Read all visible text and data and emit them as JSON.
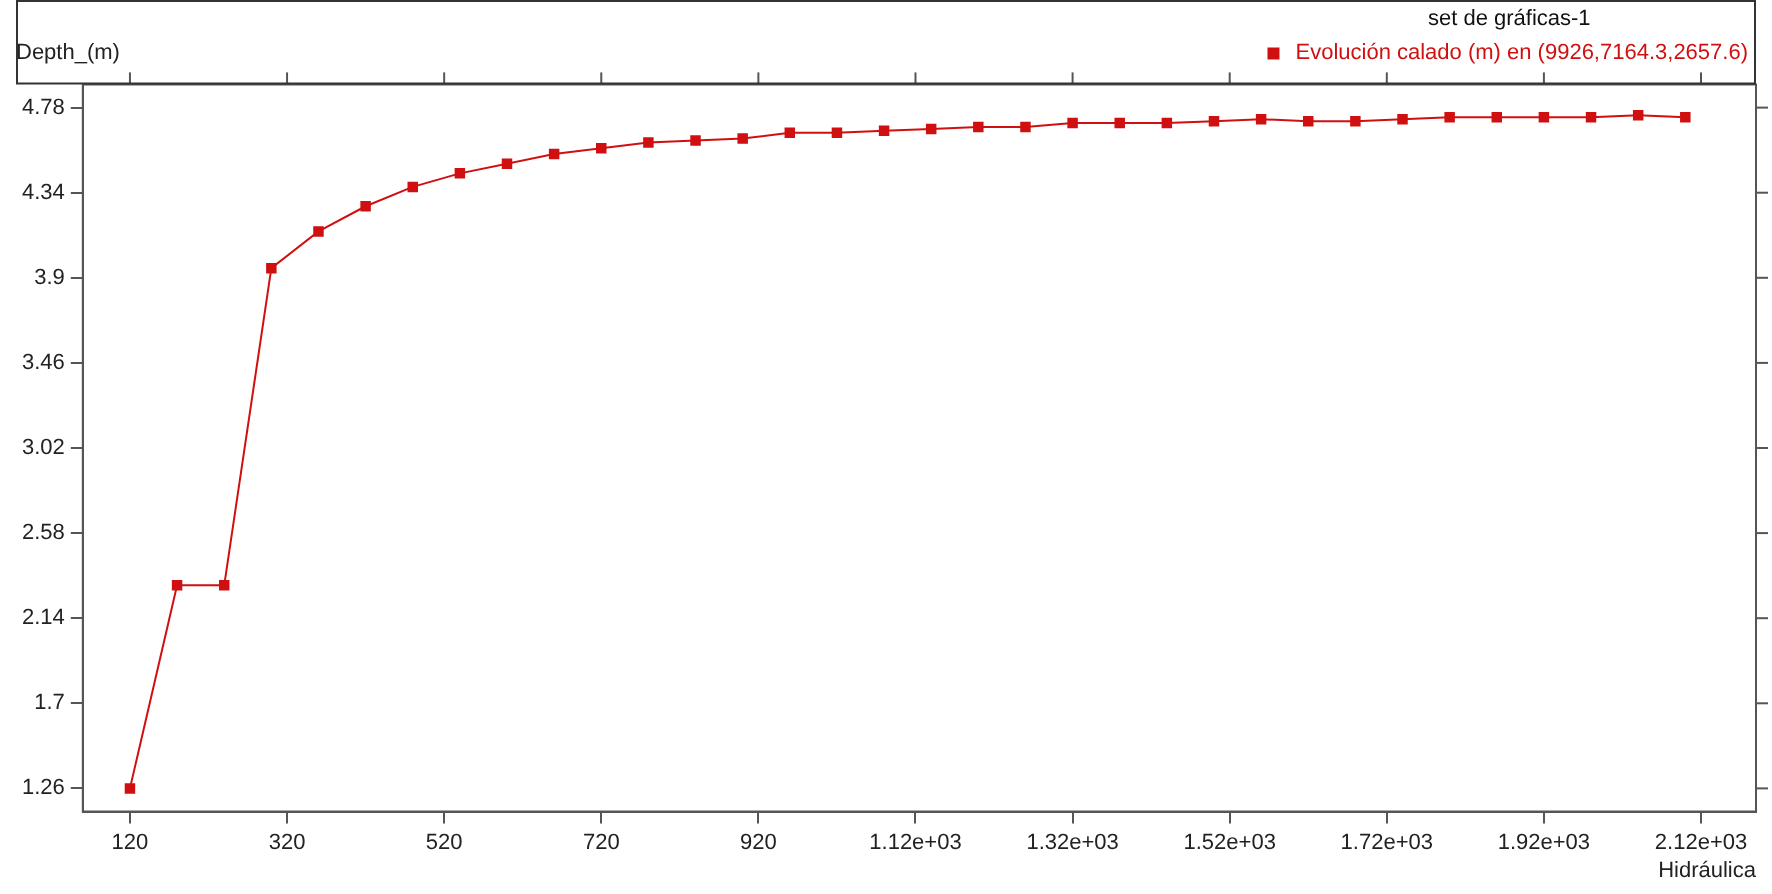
{
  "chart_data": {
    "type": "line",
    "xlabel": "Hidráulica",
    "ylabel": "Depth_(m)",
    "legend_title": "set de gráficas-1",
    "legend": "top right",
    "marker": "square",
    "line_style": "solid",
    "xlim": [
      60,
      2190
    ],
    "ylim": [
      1.14,
      4.9
    ],
    "xticks": [
      120,
      320,
      520,
      720,
      920,
      {
        "value": 1120,
        "label": "1.12e+03"
      },
      {
        "value": 1320,
        "label": "1.32e+03"
      },
      {
        "value": 1520,
        "label": "1.52e+03"
      },
      {
        "value": 1720,
        "label": "1.72e+03"
      },
      {
        "value": 1920,
        "label": "1.92e+03"
      },
      {
        "value": 2120,
        "label": "2.12e+03"
      }
    ],
    "yticks": [
      1.26,
      1.7,
      2.14,
      2.58,
      3.02,
      3.46,
      3.9,
      4.34,
      4.78
    ],
    "x": [
      120,
      180,
      240,
      300,
      360,
      420,
      480,
      540,
      600,
      660,
      720,
      780,
      840,
      900,
      960,
      1020,
      1080,
      1140,
      1200,
      1260,
      1320,
      1380,
      1440,
      1500,
      1560,
      1620,
      1680,
      1740,
      1800,
      1860,
      1920,
      1980,
      2040,
      2100
    ],
    "series": [
      {
        "name": "Evolución calado (m) en (9926,7164.3,2657.6)",
        "color": "#d01010",
        "values": [
          1.26,
          2.31,
          2.31,
          3.95,
          4.14,
          4.27,
          4.37,
          4.44,
          4.49,
          4.54,
          4.57,
          4.6,
          4.61,
          4.62,
          4.65,
          4.65,
          4.66,
          4.67,
          4.68,
          4.68,
          4.7,
          4.7,
          4.7,
          4.71,
          4.72,
          4.71,
          4.71,
          4.72,
          4.73,
          4.73,
          4.73,
          4.73,
          4.74,
          4.73
        ]
      }
    ]
  }
}
